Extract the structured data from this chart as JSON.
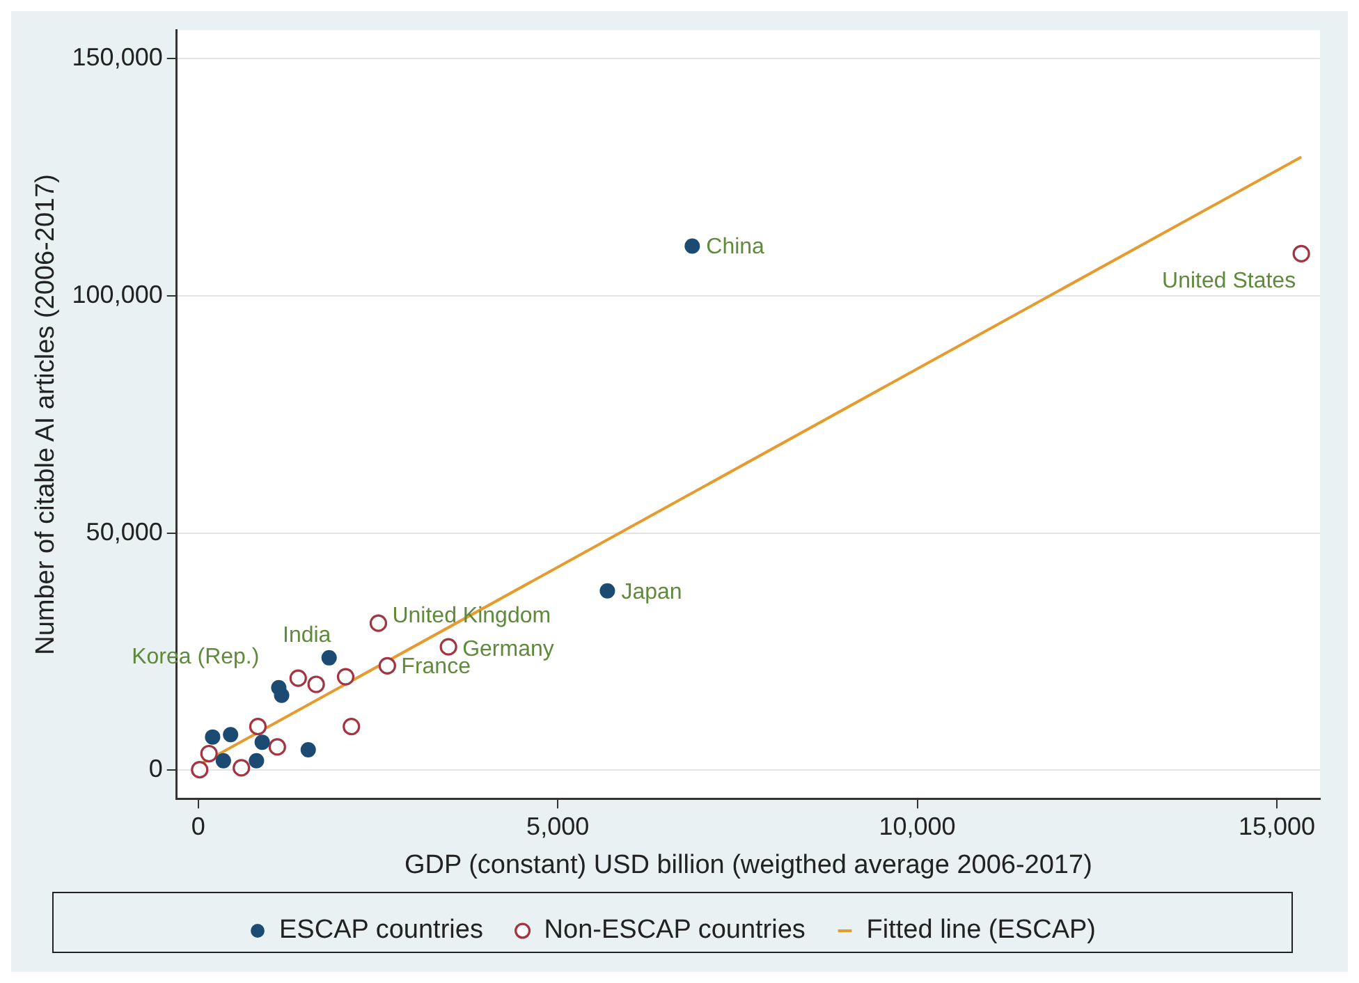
{
  "chart_data": {
    "type": "scatter",
    "xlabel": "GDP (constant) USD billion (weigthed average 2006-2017)",
    "ylabel": "Number of citable AI articles (2006-2017)",
    "xlim": [
      -300,
      15600
    ],
    "ylim": [
      -6000,
      156000
    ],
    "xticks": [
      {
        "value": 0,
        "label": "0"
      },
      {
        "value": 5000,
        "label": "5,000"
      },
      {
        "value": 10000,
        "label": "10,000"
      },
      {
        "value": 15000,
        "label": "15,000"
      }
    ],
    "yticks": [
      {
        "value": 0,
        "label": "0"
      },
      {
        "value": 50000,
        "label": "50,000"
      },
      {
        "value": 100000,
        "label": "100,000"
      },
      {
        "value": 150000,
        "label": "150,000"
      }
    ],
    "grid": "y",
    "legend": "bottom",
    "marker": "circle",
    "series": [
      {
        "name": "ESCAP countries",
        "color": "#1b4a73",
        "x": [
          6870,
          5690,
          1820,
          1120,
          1160,
          1530,
          890,
          810,
          200,
          450,
          350
        ],
        "values": [
          110500,
          37800,
          23700,
          17400,
          15800,
          4300,
          5900,
          2000,
          7000,
          7500,
          2000
        ]
      },
      {
        "name": "Non-ESCAP countries",
        "color": "#a23541",
        "x": [
          15340,
          2505,
          3480,
          2630,
          1390,
          1640,
          2050,
          2130,
          1100,
          830,
          20,
          150,
          600
        ],
        "values": [
          108900,
          31000,
          26000,
          22000,
          19400,
          18100,
          19700,
          9200,
          4900,
          9200,
          100,
          3500,
          500
        ]
      },
      {
        "name": "Fitted line (ESCAP)",
        "type": "line",
        "marker": "none",
        "color": "#e59b2e",
        "x": [
          0,
          15340
        ],
        "values": [
          1000,
          129300
        ]
      }
    ],
    "annotations": [
      {
        "text": "China",
        "x": 6870,
        "y": 110500
      },
      {
        "text": "United States",
        "x": 15340,
        "y": 108900
      },
      {
        "text": "Japan",
        "x": 5690,
        "y": 37800
      },
      {
        "text": "United Kingdom",
        "x": 2505,
        "y": 31250
      },
      {
        "text": "Germany",
        "x": 3480,
        "y": 26000
      },
      {
        "text": "France",
        "x": 2630,
        "y": 22000
      },
      {
        "text": "India",
        "x": 1820,
        "y": 23700
      },
      {
        "text": "Korea (Rep.)",
        "x": 1120,
        "y": 17400
      }
    ]
  }
}
